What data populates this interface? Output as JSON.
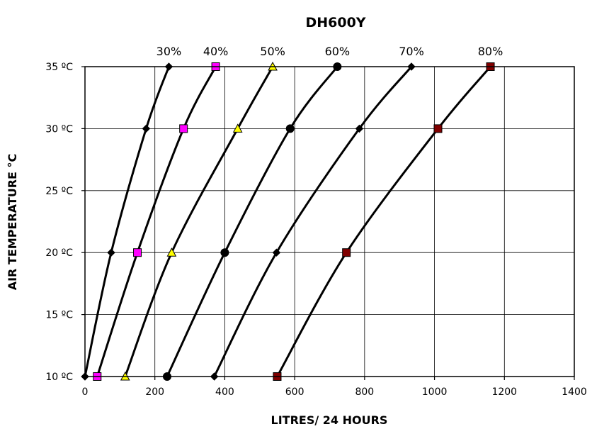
{
  "chart_data": {
    "type": "line",
    "title": "DH600Y",
    "xlabel": "LITRES/ 24 HOURS",
    "ylabel": "AIR TEMPERATURE °C",
    "xlim": [
      0,
      1400
    ],
    "ylim": [
      10,
      35
    ],
    "x_ticks": [
      {
        "value": 0,
        "label": "0"
      },
      {
        "value": 200,
        "label": "200"
      },
      {
        "value": 400,
        "label": "400"
      },
      {
        "value": 600,
        "label": "600"
      },
      {
        "value": 800,
        "label": "800"
      },
      {
        "value": 1000,
        "label": "1000"
      },
      {
        "value": 1200,
        "label": "1200"
      },
      {
        "value": 1400,
        "label": "1400"
      }
    ],
    "y_ticks": [
      {
        "value": 10,
        "label": "10 ºC"
      },
      {
        "value": 15,
        "label": "15 ºC"
      },
      {
        "value": 20,
        "label": "20 ºC"
      },
      {
        "value": 25,
        "label": "25 ºC"
      },
      {
        "value": 30,
        "label": "30 ºC"
      },
      {
        "value": 35,
        "label": "35 ºC"
      }
    ],
    "grid": true,
    "series": [
      {
        "name": "30%",
        "marker": "diamond",
        "color": "#000000",
        "points": [
          {
            "x": 0,
            "y": 10
          },
          {
            "x": 75,
            "y": 20
          },
          {
            "x": 175,
            "y": 30
          },
          {
            "x": 240,
            "y": 35
          }
        ]
      },
      {
        "name": "40%",
        "marker": "square",
        "color": "#ff00ff",
        "points": [
          {
            "x": 35,
            "y": 10
          },
          {
            "x": 150,
            "y": 20
          },
          {
            "x": 282,
            "y": 30
          },
          {
            "x": 374,
            "y": 35
          }
        ]
      },
      {
        "name": "50%",
        "marker": "triangle",
        "color": "#ffff00",
        "points": [
          {
            "x": 115,
            "y": 10
          },
          {
            "x": 248,
            "y": 20
          },
          {
            "x": 437,
            "y": 30
          },
          {
            "x": 537,
            "y": 35
          }
        ]
      },
      {
        "name": "60%",
        "marker": "circle",
        "color": "#000000",
        "points": [
          {
            "x": 235,
            "y": 10
          },
          {
            "x": 400,
            "y": 20
          },
          {
            "x": 587,
            "y": 30
          },
          {
            "x": 722,
            "y": 35
          }
        ]
      },
      {
        "name": "70%",
        "marker": "diamond",
        "color": "#000000",
        "points": [
          {
            "x": 370,
            "y": 10
          },
          {
            "x": 548,
            "y": 20
          },
          {
            "x": 785,
            "y": 30
          },
          {
            "x": 934,
            "y": 35
          }
        ]
      },
      {
        "name": "80%",
        "marker": "square",
        "color": "#800000",
        "points": [
          {
            "x": 550,
            "y": 10
          },
          {
            "x": 748,
            "y": 20
          },
          {
            "x": 1010,
            "y": 30
          },
          {
            "x": 1160,
            "y": 35
          }
        ]
      }
    ]
  }
}
